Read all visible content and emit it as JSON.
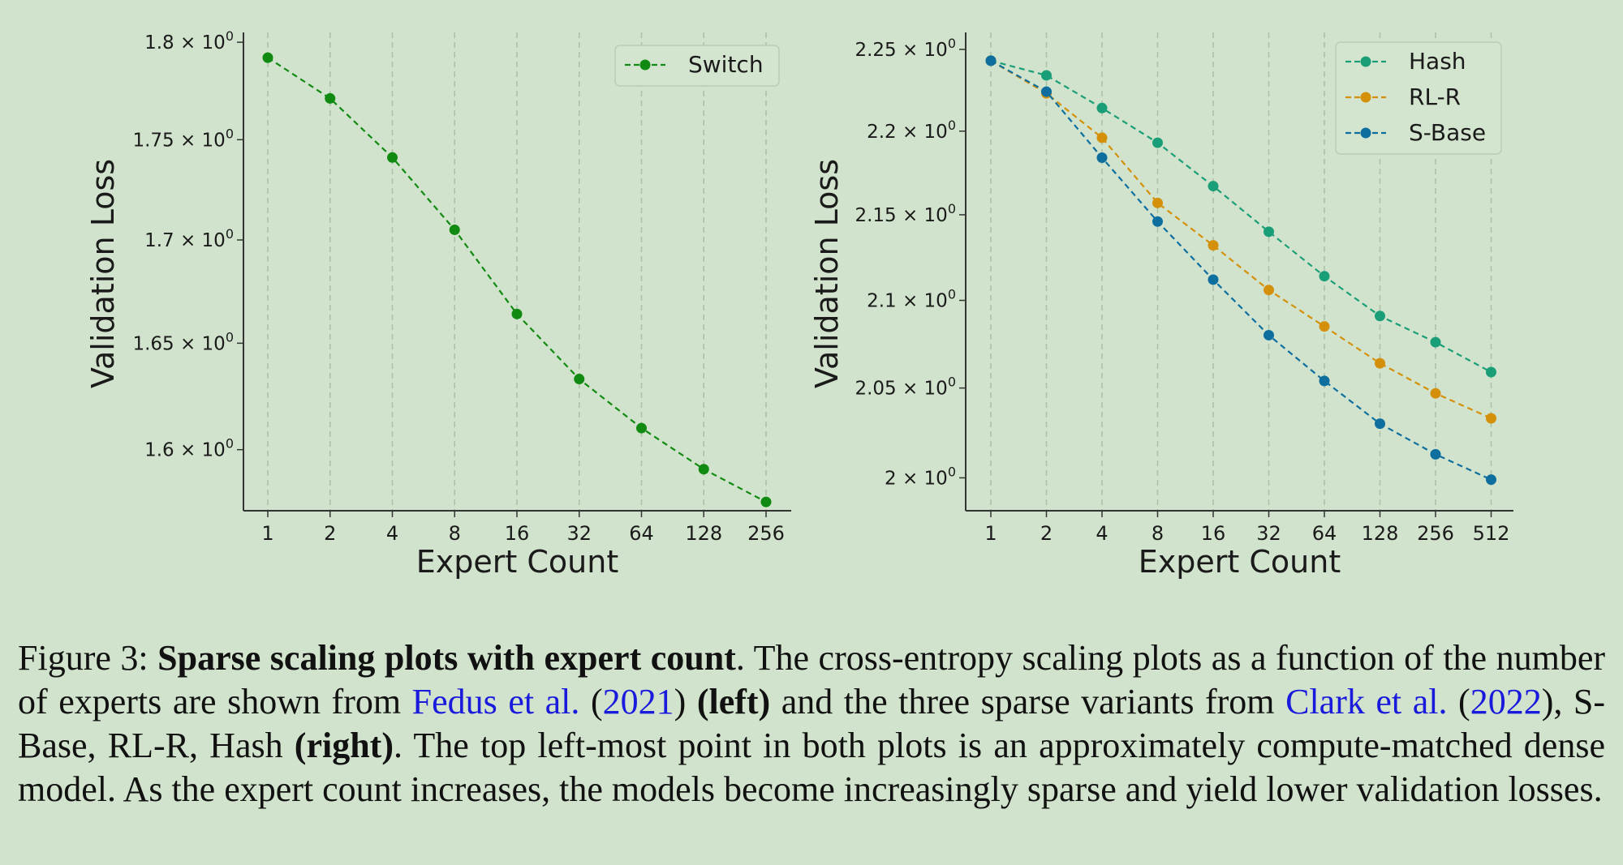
{
  "chart_data": [
    {
      "type": "line",
      "name": "left",
      "xlabel": "Expert Count",
      "ylabel": "Validation Loss",
      "x_scale": "log2",
      "y_scale": "log",
      "categories": [
        "1",
        "2",
        "4",
        "8",
        "16",
        "32",
        "64",
        "128",
        "256"
      ],
      "yticks": [
        {
          "value": 1.8,
          "label": "1.8 × 10",
          "exp": "0"
        },
        {
          "value": 1.75,
          "label": "1.75 × 10",
          "exp": "0"
        },
        {
          "value": 1.7,
          "label": "1.7 × 10",
          "exp": "0"
        },
        {
          "value": 1.65,
          "label": "1.65 × 10",
          "exp": "0"
        },
        {
          "value": 1.6,
          "label": "1.6 × 10",
          "exp": "0"
        }
      ],
      "ylim": [
        1.572,
        1.803
      ],
      "legend_position": "top-right",
      "grid": "vertical-dashed",
      "series": [
        {
          "name": "Switch",
          "color": "#118a11",
          "values": [
            1.792,
            1.771,
            1.741,
            1.705,
            1.664,
            1.633,
            1.61,
            1.591,
            1.576
          ]
        }
      ]
    },
    {
      "type": "line",
      "name": "right",
      "xlabel": "Expert Count",
      "ylabel": "Validation Loss",
      "x_scale": "log2",
      "y_scale": "log",
      "categories": [
        "1",
        "2",
        "4",
        "8",
        "16",
        "32",
        "64",
        "128",
        "256",
        "512"
      ],
      "yticks": [
        {
          "value": 2.25,
          "label": "2.25 × 10",
          "exp": "0"
        },
        {
          "value": 2.2,
          "label": "2.2 × 10",
          "exp": "0"
        },
        {
          "value": 2.15,
          "label": "2.15 × 10",
          "exp": "0"
        },
        {
          "value": 2.1,
          "label": "2.1 × 10",
          "exp": "0"
        },
        {
          "value": 2.05,
          "label": "2.05 × 10",
          "exp": "0"
        },
        {
          "value": 2.0,
          "label": "2 × 10",
          "exp": "0"
        }
      ],
      "ylim": [
        1.982,
        2.258
      ],
      "legend_position": "top-right",
      "grid": "vertical-dashed",
      "series": [
        {
          "name": "Hash",
          "color": "#1a9e77",
          "values": [
            2.243,
            2.234,
            2.214,
            2.193,
            2.167,
            2.14,
            2.114,
            2.091,
            2.076,
            2.059
          ]
        },
        {
          "name": "RL-R",
          "color": "#d4900a",
          "values": [
            2.243,
            2.223,
            2.196,
            2.157,
            2.132,
            2.106,
            2.085,
            2.064,
            2.047,
            2.033
          ]
        },
        {
          "name": "S-Base",
          "color": "#0e6f9f",
          "values": [
            2.243,
            2.224,
            2.184,
            2.146,
            2.112,
            2.08,
            2.054,
            2.03,
            2.013,
            1.999
          ]
        }
      ]
    }
  ],
  "caption": {
    "figure_label": "Figure 3:",
    "title": "Sparse scaling plots with expert count",
    "title_end": ".",
    "text1": " The cross-entropy scaling plots as a function of the number of experts are shown from ",
    "cite1_author": "Fedus et al.",
    "cite1_open": " (",
    "cite1_year": "2021",
    "cite1_close": ") ",
    "left_label": "(left)",
    "text2": " and the three sparse variants from ",
    "cite2_author": "Clark et al.",
    "cite2_open": " (",
    "cite2_year": "2022",
    "cite2_close": "), S-Base, RL-R, Hash ",
    "right_label": "(right)",
    "text3": ". The top left-most point in both plots is an approximately compute-matched dense model. As the expert count increases, the models become increasingly sparse and yield lower validation losses."
  }
}
